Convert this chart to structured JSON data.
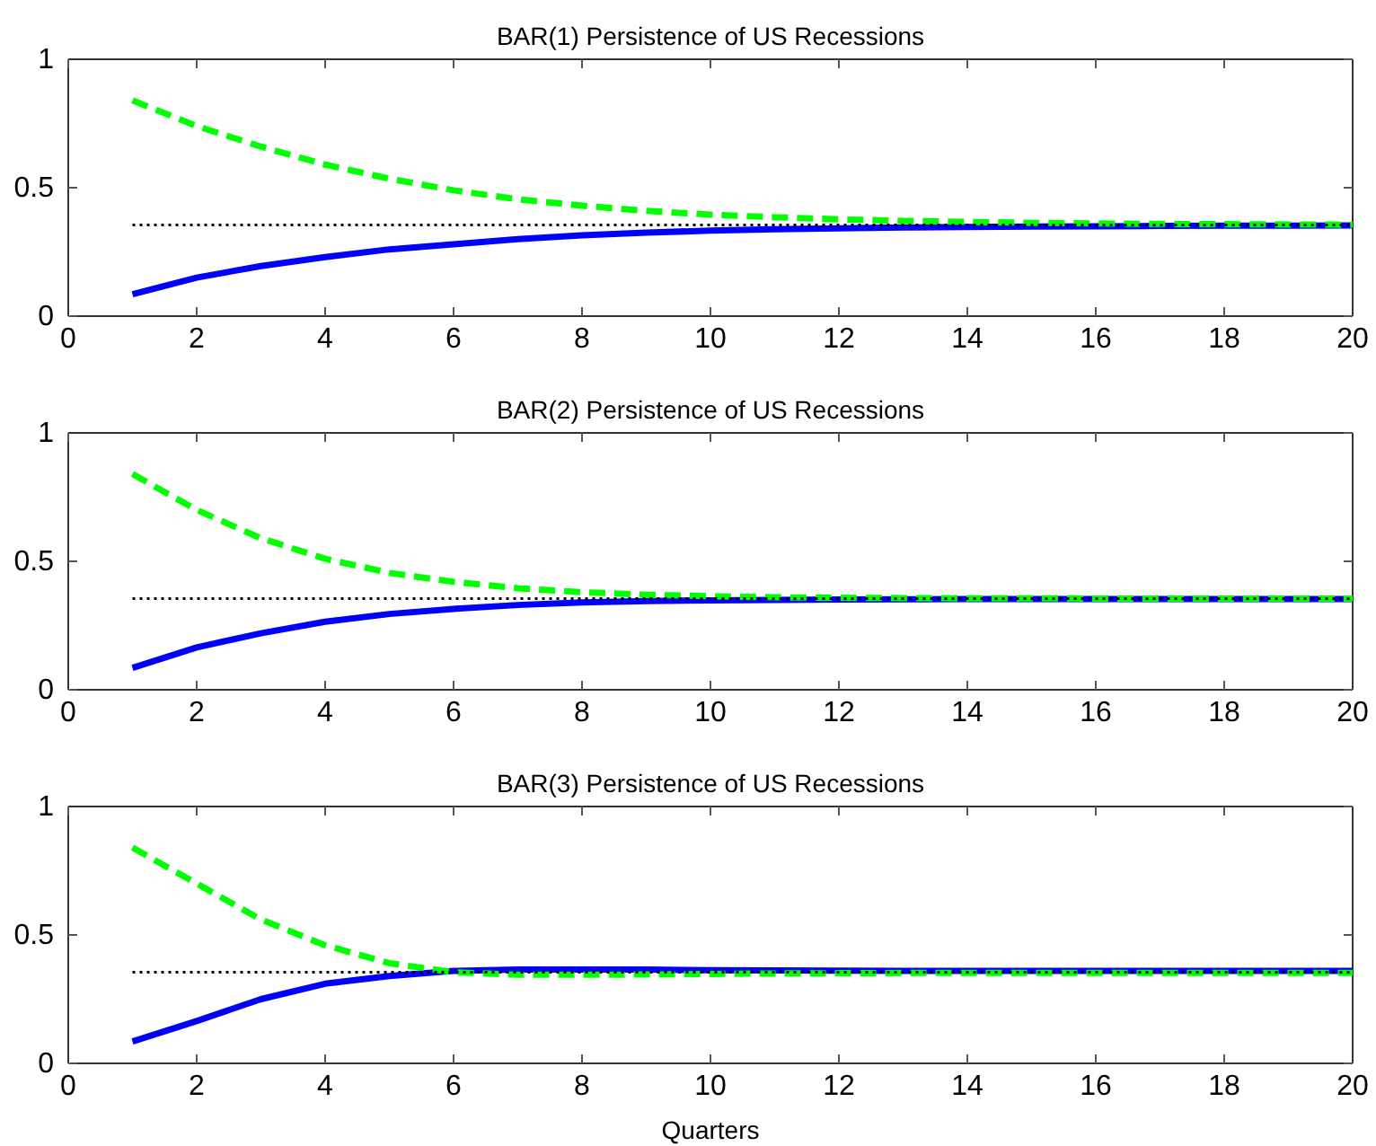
{
  "chart_data": [
    {
      "type": "line",
      "title": "BAR(1) Persistence of US Recessions",
      "x": [
        1,
        2,
        3,
        4,
        5,
        6,
        7,
        8,
        9,
        10,
        11,
        12,
        13,
        14,
        15,
        16,
        17,
        18,
        19,
        20
      ],
      "xlim": [
        0,
        20
      ],
      "xticks": [
        0,
        2,
        4,
        6,
        8,
        10,
        12,
        14,
        16,
        18,
        20
      ],
      "ylim": [
        0,
        1
      ],
      "yticks": [
        0,
        0.5,
        1
      ],
      "grid": false,
      "series": [
        {
          "color": "#0000ff",
          "line_style": "solid",
          "values": [
            0.085,
            0.15,
            0.195,
            0.23,
            0.26,
            0.28,
            0.3,
            0.315,
            0.325,
            0.333,
            0.338,
            0.342,
            0.345,
            0.347,
            0.349,
            0.35,
            0.351,
            0.352,
            0.352,
            0.353
          ]
        },
        {
          "color": "#00ff00",
          "line_style": "dashed",
          "values": [
            0.84,
            0.74,
            0.66,
            0.59,
            0.535,
            0.49,
            0.455,
            0.43,
            0.41,
            0.395,
            0.385,
            0.377,
            0.371,
            0.367,
            0.363,
            0.361,
            0.359,
            0.358,
            0.357,
            0.356
          ]
        },
        {
          "color": "#000000",
          "line_style": "dotted",
          "values": [
            0.355,
            0.355,
            0.355,
            0.355,
            0.355,
            0.355,
            0.355,
            0.355,
            0.355,
            0.355,
            0.355,
            0.355,
            0.355,
            0.355,
            0.355,
            0.355,
            0.355,
            0.355,
            0.355,
            0.355
          ]
        }
      ]
    },
    {
      "type": "line",
      "title": "BAR(2) Persistence of US Recessions",
      "x": [
        1,
        2,
        3,
        4,
        5,
        6,
        7,
        8,
        9,
        10,
        11,
        12,
        13,
        14,
        15,
        16,
        17,
        18,
        19,
        20
      ],
      "xlim": [
        0,
        20
      ],
      "xticks": [
        0,
        2,
        4,
        6,
        8,
        10,
        12,
        14,
        16,
        18,
        20
      ],
      "ylim": [
        0,
        1
      ],
      "yticks": [
        0,
        0.5,
        1
      ],
      "grid": false,
      "series": [
        {
          "color": "#0000ff",
          "line_style": "solid",
          "values": [
            0.085,
            0.165,
            0.22,
            0.265,
            0.295,
            0.315,
            0.33,
            0.34,
            0.345,
            0.348,
            0.35,
            0.351,
            0.352,
            0.353,
            0.353,
            0.353,
            0.353,
            0.353,
            0.353,
            0.353
          ]
        },
        {
          "color": "#00ff00",
          "line_style": "dashed",
          "values": [
            0.84,
            0.7,
            0.59,
            0.51,
            0.455,
            0.42,
            0.395,
            0.38,
            0.37,
            0.364,
            0.36,
            0.358,
            0.357,
            0.356,
            0.356,
            0.355,
            0.355,
            0.355,
            0.355,
            0.355
          ]
        },
        {
          "color": "#000000",
          "line_style": "dotted",
          "values": [
            0.355,
            0.355,
            0.355,
            0.355,
            0.355,
            0.355,
            0.355,
            0.355,
            0.355,
            0.355,
            0.355,
            0.355,
            0.355,
            0.355,
            0.355,
            0.355,
            0.355,
            0.355,
            0.355,
            0.355
          ]
        }
      ]
    },
    {
      "type": "line",
      "title": "BAR(3) Persistence of US Recessions",
      "xlabel": "Quarters",
      "x": [
        1,
        2,
        3,
        4,
        5,
        6,
        7,
        8,
        9,
        10,
        11,
        12,
        13,
        14,
        15,
        16,
        17,
        18,
        19,
        20
      ],
      "xlim": [
        0,
        20
      ],
      "xticks": [
        0,
        2,
        4,
        6,
        8,
        10,
        12,
        14,
        16,
        18,
        20
      ],
      "ylim": [
        0,
        1
      ],
      "yticks": [
        0,
        0.5,
        1
      ],
      "grid": false,
      "series": [
        {
          "color": "#0000ff",
          "line_style": "solid",
          "values": [
            0.085,
            0.165,
            0.25,
            0.31,
            0.34,
            0.36,
            0.365,
            0.365,
            0.365,
            0.363,
            0.362,
            0.361,
            0.36,
            0.36,
            0.36,
            0.36,
            0.36,
            0.36,
            0.36,
            0.36
          ]
        },
        {
          "color": "#00ff00",
          "line_style": "dashed",
          "values": [
            0.84,
            0.7,
            0.56,
            0.46,
            0.39,
            0.355,
            0.345,
            0.345,
            0.346,
            0.348,
            0.35,
            0.351,
            0.352,
            0.352,
            0.352,
            0.352,
            0.352,
            0.352,
            0.352,
            0.352
          ]
        },
        {
          "color": "#000000",
          "line_style": "dotted",
          "values": [
            0.355,
            0.355,
            0.355,
            0.355,
            0.355,
            0.355,
            0.355,
            0.355,
            0.355,
            0.355,
            0.355,
            0.355,
            0.355,
            0.355,
            0.355,
            0.355,
            0.355,
            0.355,
            0.355,
            0.355
          ]
        }
      ]
    }
  ]
}
